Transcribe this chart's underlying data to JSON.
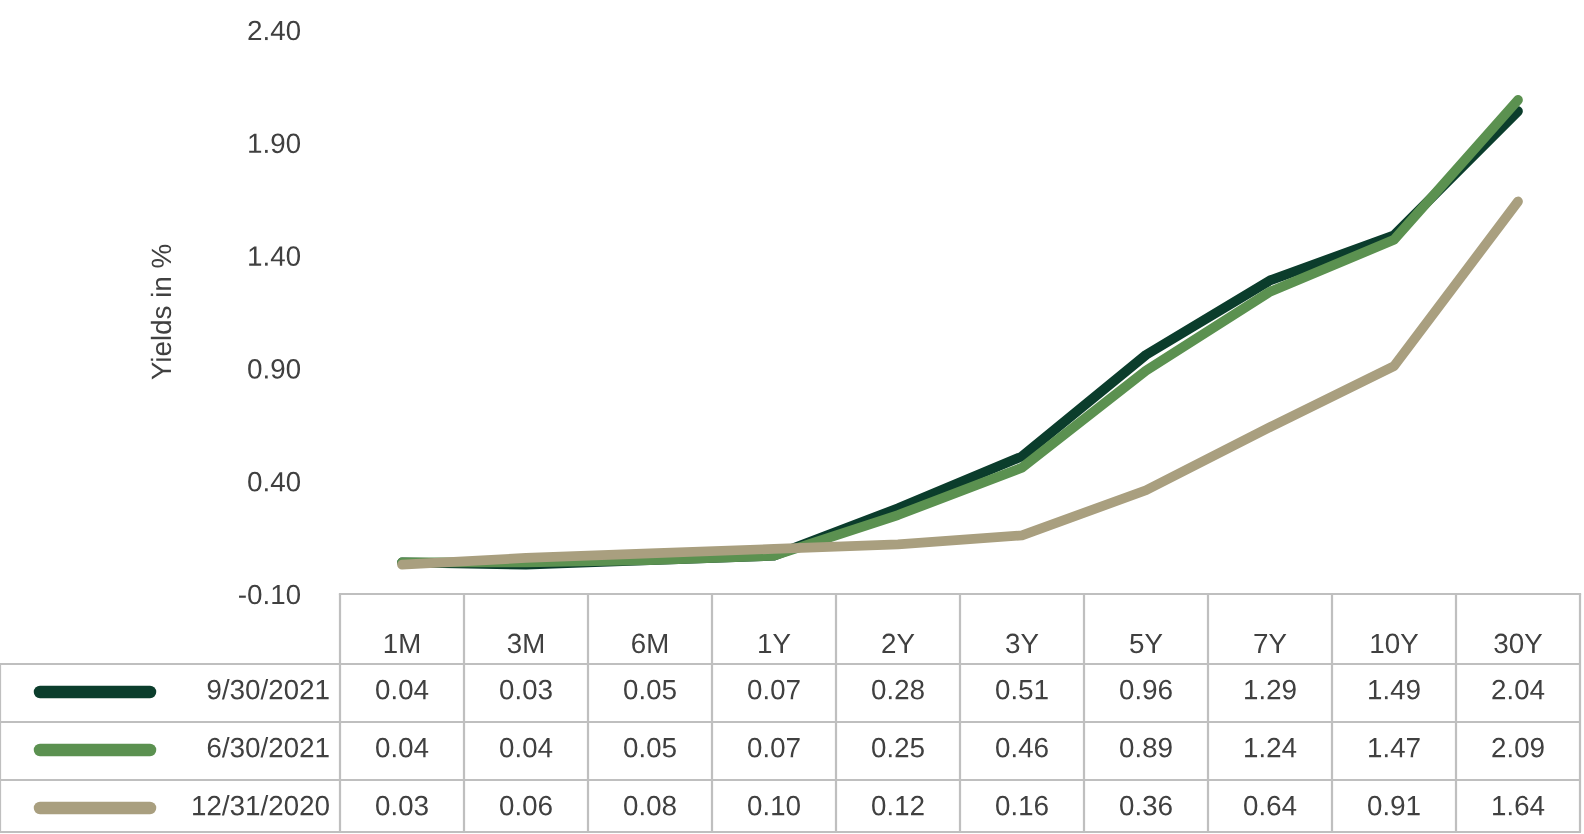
{
  "chart_data": {
    "type": "line",
    "ylabel": "Yields in %",
    "categories": [
      "1M",
      "3M",
      "6M",
      "1Y",
      "2Y",
      "3Y",
      "5Y",
      "7Y",
      "10Y",
      "30Y"
    ],
    "ylim": [
      -0.1,
      2.4
    ],
    "yticks": [
      {
        "value": -0.1,
        "label": "-0.10"
      },
      {
        "value": 0.4,
        "label": "0.40"
      },
      {
        "value": 0.9,
        "label": "0.90"
      },
      {
        "value": 1.4,
        "label": "1.40"
      },
      {
        "value": 1.9,
        "label": "1.90"
      },
      {
        "value": 2.4,
        "label": "2.40"
      }
    ],
    "grid": false,
    "legend": "bottom left",
    "marker": "none",
    "line_style": "solid",
    "series": [
      {
        "name": "9/30/2021",
        "color": "#0b3d2c",
        "values": [
          0.04,
          0.03,
          0.05,
          0.07,
          0.28,
          0.51,
          0.96,
          1.29,
          1.49,
          2.04
        ],
        "value_labels": [
          "0.04",
          "0.03",
          "0.05",
          "0.07",
          "0.28",
          "0.51",
          "0.96",
          "1.29",
          "1.49",
          "2.04"
        ]
      },
      {
        "name": "6/30/2021",
        "color": "#5b9150",
        "values": [
          0.04,
          0.04,
          0.05,
          0.07,
          0.25,
          0.46,
          0.89,
          1.24,
          1.47,
          2.09
        ],
        "value_labels": [
          "0.04",
          "0.04",
          "0.05",
          "0.07",
          "0.25",
          "0.46",
          "0.89",
          "1.24",
          "1.47",
          "2.09"
        ]
      },
      {
        "name": "12/31/2020",
        "color": "#a99f7f",
        "values": [
          0.03,
          0.06,
          0.08,
          0.1,
          0.12,
          0.16,
          0.36,
          0.64,
          0.91,
          1.64
        ],
        "value_labels": [
          "0.03",
          "0.06",
          "0.08",
          "0.10",
          "0.12",
          "0.16",
          "0.36",
          "0.64",
          "0.91",
          "1.64"
        ]
      }
    ]
  }
}
